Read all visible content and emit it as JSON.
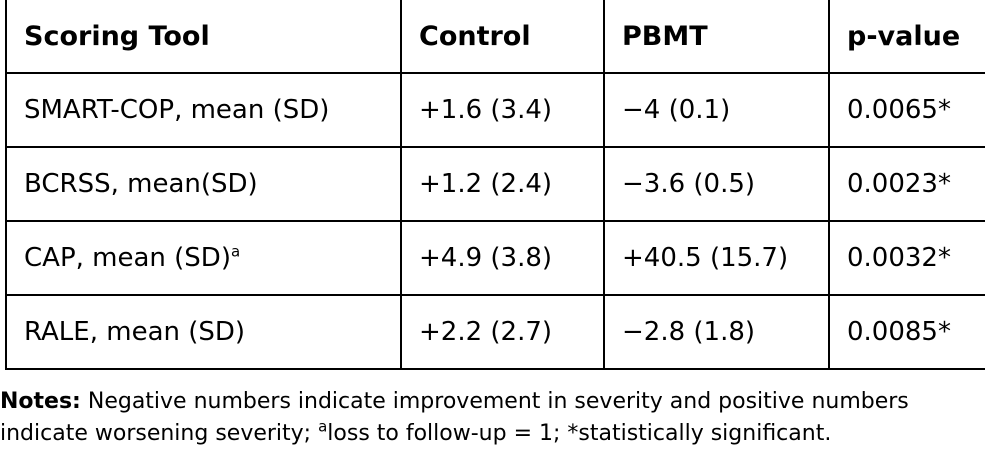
{
  "table": {
    "headers": [
      "Scoring Tool",
      "Control",
      "PBMT",
      "p-value"
    ],
    "rows": [
      {
        "tool": "SMART-COP, mean (SD)",
        "tool_sup": "",
        "control": "+1.6 (3.4)",
        "pbmt": "−4 (0.1)",
        "p_value": "0.0065*"
      },
      {
        "tool": "BCRSS, mean(SD)",
        "tool_sup": "",
        "control": "+1.2 (2.4)",
        "pbmt": "−3.6 (0.5)",
        "p_value": "0.0023*"
      },
      {
        "tool": "CAP, mean (SD)",
        "tool_sup": "a",
        "control": "+4.9 (3.8)",
        "pbmt": "+40.5 (15.7)",
        "p_value": "0.0032*"
      },
      {
        "tool": "RALE, mean (SD)",
        "tool_sup": "",
        "control": "+2.2 (2.7)",
        "pbmt": "−2.8 (1.8)",
        "p_value": "0.0085*"
      }
    ]
  },
  "notes": {
    "label": "Notes:",
    "line1": "Negative numbers indicate improvement in severity and positive numbers",
    "line2_pre": "indicate worsening severity; ",
    "line2_sup": "a",
    "line2_post": "loss to follow-up = 1; *statistically significant."
  }
}
